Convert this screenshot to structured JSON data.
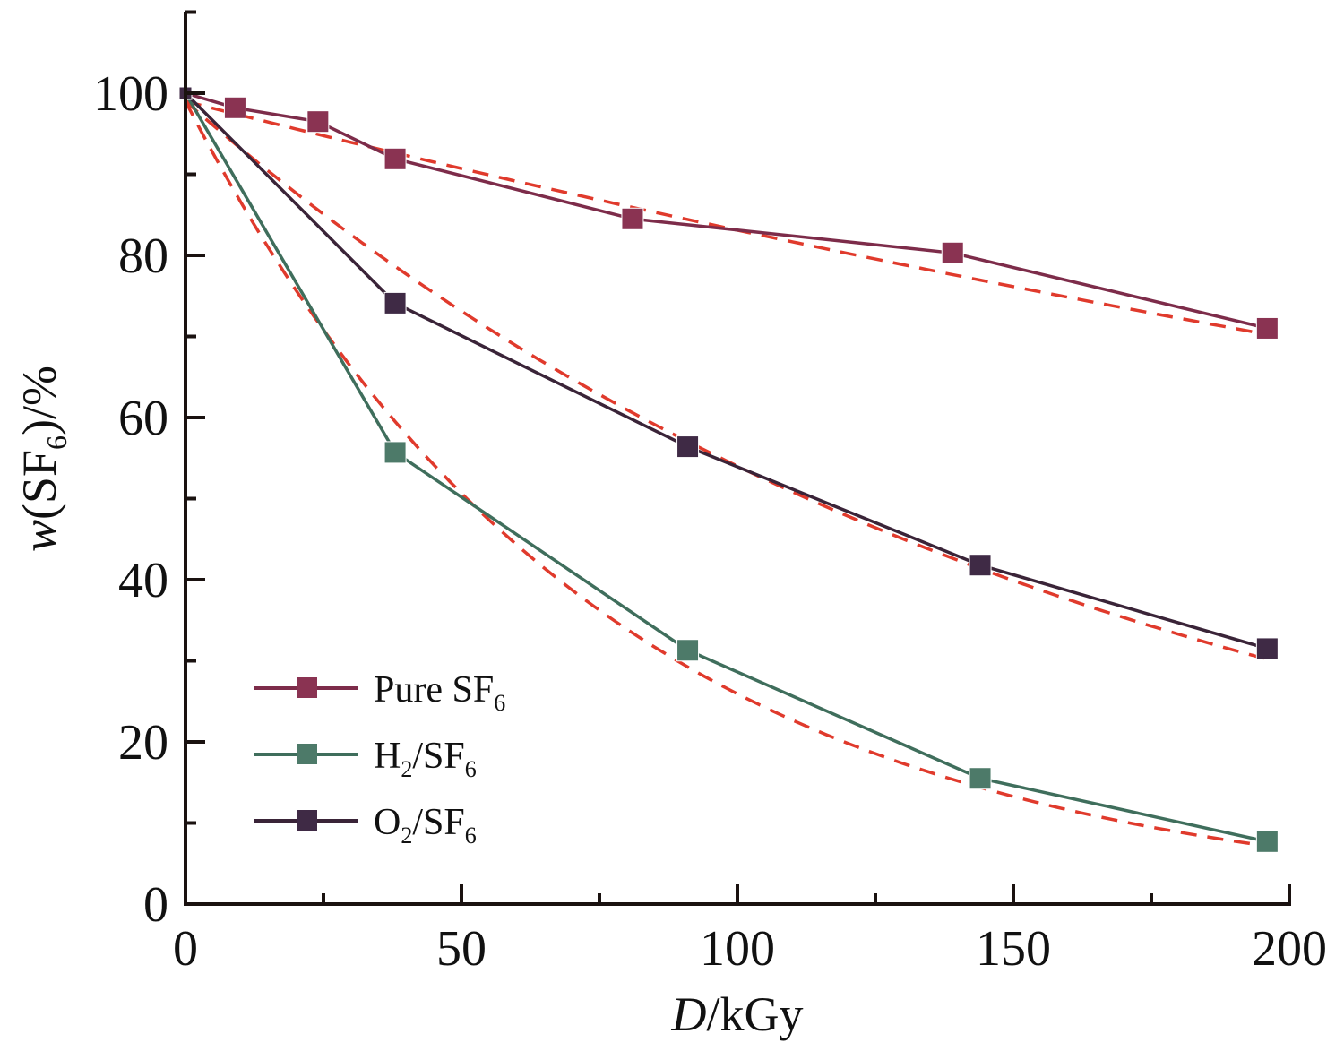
{
  "chart_data": {
    "type": "line",
    "title": "",
    "xlabel": {
      "italic": "D",
      "rest": "/kGy"
    },
    "ylabel": {
      "italic": "w",
      "open": "(SF",
      "sub": "6",
      "close": ")/%"
    },
    "xlim": [
      0,
      200
    ],
    "ylim": [
      0,
      110
    ],
    "x_ticks": [
      0,
      50,
      100,
      150,
      200
    ],
    "x_tick_labels": [
      "0",
      "50",
      "100",
      "150",
      "200"
    ],
    "x_minor_ticks": [
      25,
      75,
      125,
      175
    ],
    "y_ticks": [
      0,
      20,
      40,
      60,
      80,
      100
    ],
    "y_tick_labels": [
      "0",
      "20",
      "40",
      "60",
      "80",
      "100"
    ],
    "y_minor_ticks": [
      10,
      30,
      50,
      70,
      90,
      110
    ],
    "grid": false,
    "legend_position": "bottom-left",
    "series": [
      {
        "name": "Pure SF6",
        "label_main": "Pure SF",
        "label_sub": "6",
        "label_tail": "",
        "color": "#7d2c4a",
        "marker_color": "#8a3352",
        "x": [
          0,
          9,
          24,
          38,
          81,
          139,
          196
        ],
        "y": [
          100,
          98.2,
          96.5,
          91.9,
          84.5,
          80.3,
          71.0
        ],
        "fit_k": 0.00175
      },
      {
        "name": "H2/SF6",
        "label_main": "H",
        "label_sub": "2",
        "label_tail": "/SF",
        "label_sub2": "6",
        "color": "#3f6e5c",
        "marker_color": "#4d7a69",
        "x": [
          0,
          38,
          91,
          144,
          196
        ],
        "y": [
          100,
          55.7,
          31.3,
          15.5,
          7.7
        ],
        "fit_k": 0.0134
      },
      {
        "name": "O2/SF6",
        "label_main": "O",
        "label_sub": "2",
        "label_tail": "/SF",
        "label_sub2": "6",
        "color": "#3a2438",
        "marker_color": "#3f2a45",
        "x": [
          0,
          38,
          91,
          144,
          196
        ],
        "y": [
          100,
          74.1,
          56.4,
          41.8,
          31.5
        ],
        "fit_k": 0.00606
      }
    ],
    "fit_line_color": "#e03a2c",
    "fit_x_range": [
      0,
      196
    ]
  }
}
